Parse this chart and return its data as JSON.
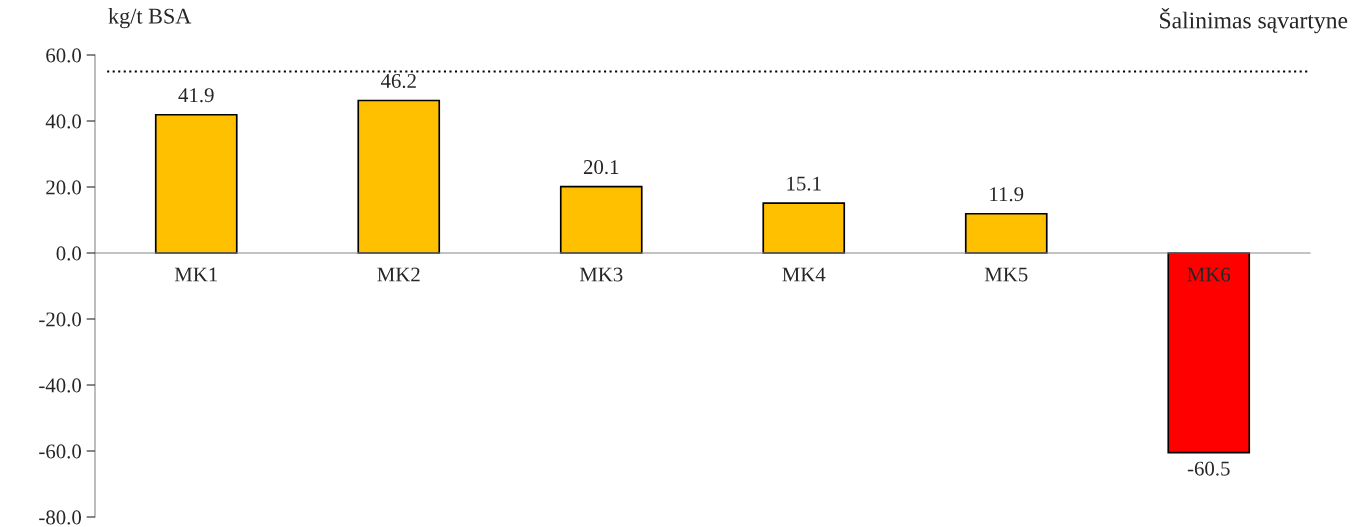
{
  "chart_data": {
    "type": "bar",
    "ylabel": "kg/t BSA",
    "categories": [
      "MK1",
      "MK2",
      "MK3",
      "MK4",
      "MK5",
      "MK6"
    ],
    "values": [
      41.9,
      46.2,
      20.1,
      15.1,
      11.9,
      -60.5
    ],
    "colors": [
      "#ffc000",
      "#ffc000",
      "#ffc000",
      "#ffc000",
      "#ffc000",
      "#ff0000"
    ],
    "ylim": [
      -80,
      60
    ],
    "yticks": [
      {
        "value": -80,
        "label": "-80.0"
      },
      {
        "value": -60,
        "label": "-60.0"
      },
      {
        "value": -40,
        "label": "-40.0"
      },
      {
        "value": -20,
        "label": "-20.0"
      },
      {
        "value": 0,
        "label": "0.0"
      },
      {
        "value": 20,
        "label": "20.0"
      },
      {
        "value": 40,
        "label": "40.0"
      },
      {
        "value": 60,
        "label": "60.0"
      }
    ],
    "ref_lines": [
      {
        "axis": "y",
        "value": 55,
        "label": "Šalinimas sąvartyne",
        "line_style": "dotted",
        "color": "#000000"
      }
    ],
    "data_labels": true,
    "grid": false,
    "legend": false
  }
}
